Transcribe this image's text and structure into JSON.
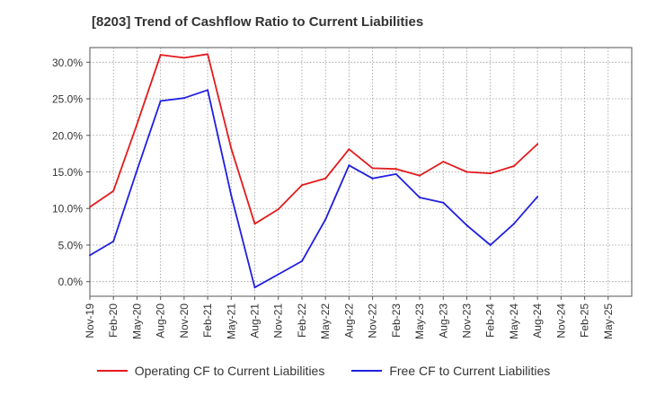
{
  "chart_data": {
    "type": "line",
    "title": "[8203]  Trend of Cashflow Ratio to Current Liabilities",
    "xlabel": "",
    "ylabel": "",
    "ylim": [
      -2,
      32
    ],
    "yticks": [
      0,
      5,
      10,
      15,
      20,
      25,
      30
    ],
    "ytick_labels": [
      "0.0%",
      "5.0%",
      "10.0%",
      "15.0%",
      "20.0%",
      "25.0%",
      "30.0%"
    ],
    "categories": [
      "Nov-19",
      "Feb-20",
      "May-20",
      "Aug-20",
      "Nov-20",
      "Feb-21",
      "May-21",
      "Aug-21",
      "Nov-21",
      "Feb-22",
      "May-22",
      "Aug-22",
      "Nov-22",
      "Feb-23",
      "May-23",
      "Aug-23",
      "Nov-23",
      "Feb-24",
      "May-24",
      "Aug-24",
      "Nov-24",
      "Feb-25",
      "May-25"
    ],
    "grid": true,
    "legend_position": "bottom",
    "series": [
      {
        "name": "Operating CF to Current Liabilities",
        "color": "#e31a1c",
        "values": [
          10.2,
          12.4,
          21.5,
          31.0,
          30.6,
          31.1,
          18.2,
          7.9,
          9.9,
          13.2,
          14.1,
          18.1,
          15.5,
          15.4,
          14.5,
          16.4,
          15.0,
          14.8,
          15.8,
          18.8,
          null,
          null,
          null
        ]
      },
      {
        "name": "Free CF to Current Liabilities",
        "color": "#1f1fe0",
        "values": [
          3.6,
          5.5,
          15.2,
          24.7,
          25.1,
          26.2,
          11.8,
          -0.8,
          1.0,
          2.8,
          8.5,
          15.9,
          14.1,
          14.7,
          11.5,
          10.8,
          7.7,
          5.0,
          7.9,
          11.6,
          null,
          null,
          null
        ]
      }
    ]
  }
}
